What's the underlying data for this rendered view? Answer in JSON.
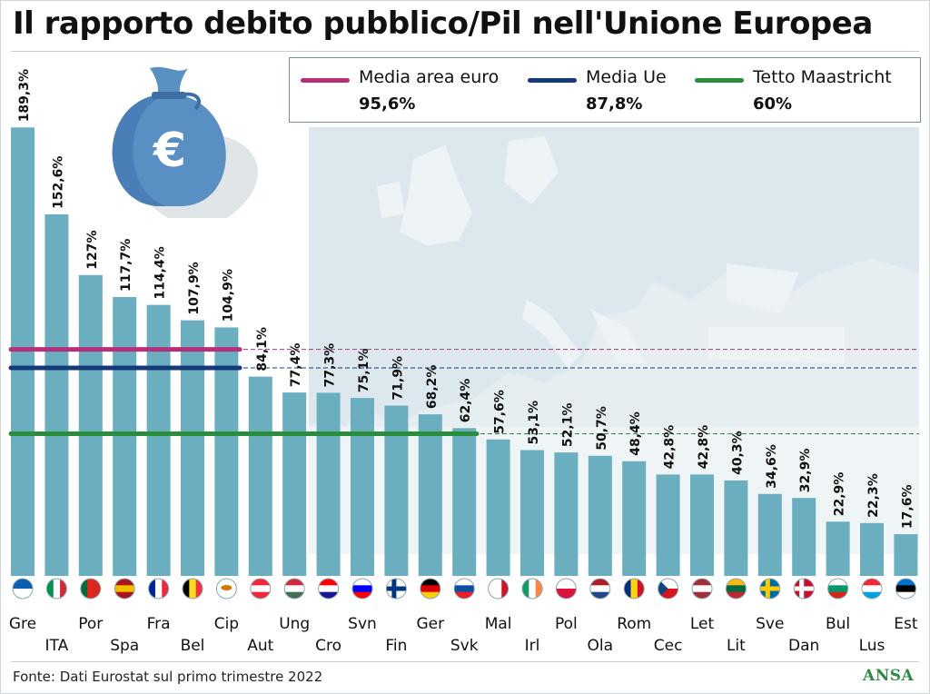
{
  "title": "Il rapporto debito pubblico/Pil nell'Unione Europea",
  "source": "Fonte: Dati Eurostat sul primo trimestre 2022",
  "logo": "ANSA",
  "legend": [
    {
      "name": "Media area euro",
      "value_label": "95,6%",
      "color": "#b5307b"
    },
    {
      "name": "Media Ue",
      "value_label": "87,8%",
      "color": "#143b78"
    },
    {
      "name": "Tetto Maastricht",
      "value_label": "60%",
      "color": "#2a8d3c"
    }
  ],
  "colors": {
    "bar": "#6aaec0",
    "map": "#dfe9ee",
    "sea": "#ffffff"
  },
  "chart_data": {
    "type": "bar",
    "categories": [
      "Gre",
      "ITA",
      "Por",
      "Spa",
      "Fra",
      "Bel",
      "Cip",
      "Aut",
      "Ung",
      "Cro",
      "Svn",
      "Fin",
      "Ger",
      "Svk",
      "Mal",
      "Irl",
      "Pol",
      "Ola",
      "Rom",
      "Cec",
      "Let",
      "Lit",
      "Sve",
      "Dan",
      "Bul",
      "Lus",
      "Est"
    ],
    "values": [
      189.3,
      152.6,
      127,
      117.7,
      114.4,
      107.9,
      104.9,
      84.1,
      77.4,
      77.3,
      75.1,
      71.9,
      68.2,
      62.4,
      57.6,
      53.1,
      52.1,
      50.7,
      48.4,
      42.8,
      42.8,
      40.3,
      34.6,
      32.9,
      22.9,
      22.3,
      17.6
    ],
    "value_labels": [
      "189,3%",
      "152,6%",
      "127%",
      "117,7%",
      "114,4%",
      "107,9%",
      "104,9%",
      "84,1%",
      "77,4%",
      "77,3%",
      "75,1%",
      "71,9%",
      "68,2%",
      "62,4%",
      "57,6%",
      "53,1%",
      "52,1%",
      "50,7%",
      "48,4%",
      "42,8%",
      "42,8%",
      "40,3%",
      "34,6%",
      "32,9%",
      "22,9%",
      "22,3%",
      "17,6%"
    ],
    "reference_lines": [
      {
        "name": "Media area euro",
        "value": 95.6
      },
      {
        "name": "Media Ue",
        "value": 87.8
      },
      {
        "name": "Tetto Maastricht",
        "value": 60
      }
    ],
    "ylim": [
      0,
      200
    ],
    "grid": false
  },
  "flags": [
    [
      "stripes-h",
      "#0d5eaf",
      "#ffffff"
    ],
    [
      "stripes-v",
      "#009246",
      "#ffffff",
      "#ce2b37"
    ],
    [
      "stripes-v",
      "#046a38",
      "#da291c",
      "#da291c"
    ],
    [
      "stripes-h",
      "#aa151b",
      "#f1bf00",
      "#aa151b"
    ],
    [
      "stripes-v",
      "#002395",
      "#ffffff",
      "#ed2939"
    ],
    [
      "stripes-v",
      "#000000",
      "#fdda24",
      "#ef3340"
    ],
    [
      "cyprus",
      "#ffffff",
      "#d57800"
    ],
    [
      "stripes-h",
      "#ed2939",
      "#ffffff",
      "#ed2939"
    ],
    [
      "stripes-h",
      "#cd2a3e",
      "#ffffff",
      "#436f4d"
    ],
    [
      "stripes-h",
      "#ff0000",
      "#ffffff",
      "#171796"
    ],
    [
      "stripes-h",
      "#ffffff",
      "#0000ff",
      "#ff0000"
    ],
    [
      "nordic",
      "#ffffff",
      "#003580"
    ],
    [
      "stripes-h",
      "#000000",
      "#dd0000",
      "#ffce00"
    ],
    [
      "stripes-h",
      "#ffffff",
      "#0b4ea2",
      "#ee1c25"
    ],
    [
      "stripes-v",
      "#ffffff",
      "#ffffff",
      "#cf142b"
    ],
    [
      "stripes-v",
      "#169b62",
      "#ffffff",
      "#ff883e"
    ],
    [
      "stripes-h",
      "#ffffff",
      "#dc143c"
    ],
    [
      "stripes-h",
      "#ae1c28",
      "#ffffff",
      "#21468b"
    ],
    [
      "stripes-v",
      "#002b7f",
      "#fcd116",
      "#ce1126"
    ],
    [
      "czech",
      "#ffffff",
      "#d7141a",
      "#11457e"
    ],
    [
      "stripes-h",
      "#9e3039",
      "#ffffff",
      "#9e3039"
    ],
    [
      "stripes-h",
      "#fdb913",
      "#006a44",
      "#c1272d"
    ],
    [
      "nordic",
      "#006aa7",
      "#fecc00"
    ],
    [
      "nordic",
      "#c8102e",
      "#ffffff"
    ],
    [
      "stripes-h",
      "#ffffff",
      "#00966e",
      "#d62612"
    ],
    [
      "stripes-h",
      "#ed2939",
      "#ffffff",
      "#00a1de"
    ],
    [
      "stripes-h",
      "#0072ce",
      "#000000",
      "#ffffff"
    ]
  ]
}
